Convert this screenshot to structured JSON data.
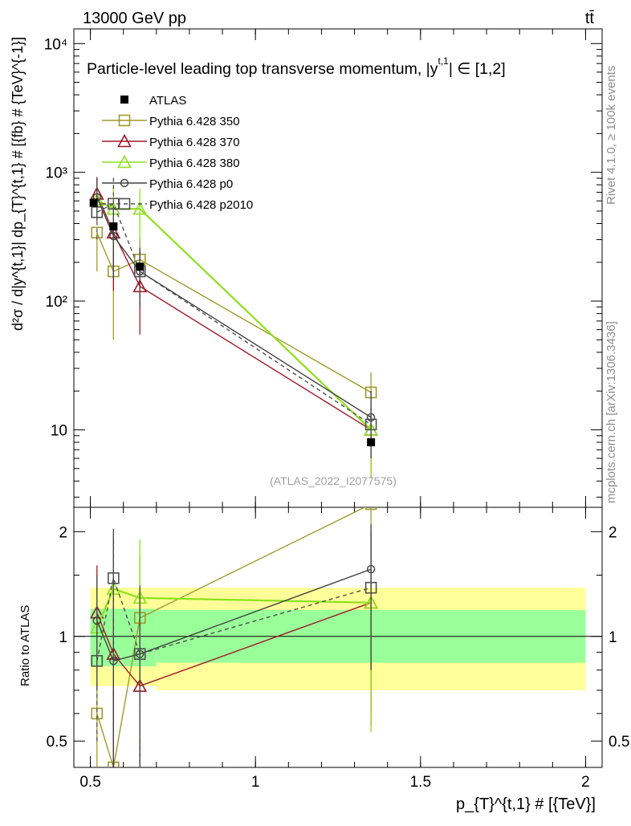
{
  "header": {
    "energy": "13000 GeV pp",
    "process": "tt̄"
  },
  "side_labels": {
    "rivet": "Rivet 4.1.0, ≥ 100k events",
    "source": "mcplots.cern.ch [arXiv:1306.3436]"
  },
  "chart_data": {
    "type": "scatter",
    "title": "Particle-level leading top transverse momentum, |y^{t,1}| ∈ [1,2]",
    "title_text": "Particle-level leading top transverse momentum, |y",
    "title_sup": "t,1",
    "title_tail": "| ∈ [1,2]",
    "analysis_id": "(ATLAS_2022_I2077575)",
    "xlabel": "p_{T}^{t,1} # [{TeV}]",
    "ylabel_main": "d²σ / d|y^{t,1}| dp_{T}^{t,1} # [{fb} # {TeV}^{-1}]",
    "ylabel_ratio": "Ratio to ATLAS",
    "xlim": [
      0.45,
      2.05
    ],
    "ylim_main": [
      2.5,
      13000
    ],
    "ylim_ratio": [
      0.42,
      2.35
    ],
    "x_ticks": [
      0.5,
      1,
      1.5,
      2
    ],
    "x_tick_labels": [
      "0.5",
      "1",
      "1.5",
      "2"
    ],
    "y_main_ticks": [
      10,
      100,
      1000,
      10000
    ],
    "y_main_tick_labels": [
      "10",
      "10²",
      "10³",
      "10⁴"
    ],
    "y_ratio_ticks": [
      0.5,
      1,
      2
    ],
    "y_ratio_tick_labels": [
      "0.5",
      "1",
      "2"
    ],
    "data": {
      "name": "ATLAS",
      "x": [
        0.51,
        0.57,
        0.65,
        1.35
      ],
      "xerr": [
        0.01,
        0.01,
        0.01,
        0.01
      ],
      "y": [
        580,
        380,
        185,
        8.0
      ]
    },
    "band_edges": [
      0.5,
      0.54,
      0.7,
      2.0
    ],
    "band_inner": [
      [
        0.82,
        1.2
      ],
      [
        0.82,
        1.2
      ],
      [
        0.84,
        1.19
      ]
    ],
    "band_outer": [
      [
        0.72,
        1.38
      ],
      [
        0.72,
        1.38
      ],
      [
        0.7,
        1.38
      ]
    ],
    "series": [
      {
        "name": "Pythia 6.428 350",
        "color": "#a09a2a",
        "marker": "square-open",
        "dash": "",
        "x": [
          0.52,
          0.57,
          0.65,
          1.35
        ],
        "y": [
          340,
          170,
          210,
          19.5
        ],
        "err": [
          [
            170,
            340
          ],
          [
            50,
            360
          ],
          [
            130,
            310
          ],
          [
            12,
            28
          ]
        ],
        "ratio": [
          0.6,
          0.42,
          1.13,
          2.4
        ],
        "ratio_err": [
          [
            0.4,
            0.8
          ],
          [
            0.3,
            1.9
          ],
          [
            0.35,
            1.7
          ],
          [
            0.6,
            3
          ]
        ]
      },
      {
        "name": "Pythia 6.428 370",
        "color": "#a01828",
        "marker": "triangle-open",
        "dash": "",
        "x": [
          0.52,
          0.57,
          0.65,
          1.35
        ],
        "y": [
          680,
          340,
          130,
          10.0
        ],
        "err": [
          [
            500,
            920
          ],
          [
            120,
            600
          ],
          [
            55,
            250
          ],
          [
            4.2,
            15
          ]
        ],
        "ratio": [
          1.17,
          0.89,
          0.72,
          1.25
        ],
        "ratio_err": [
          [
            0.8,
            1.6
          ],
          [
            0.35,
            1.6
          ],
          [
            0.3,
            1.4
          ],
          [
            0.55,
            2
          ]
        ]
      },
      {
        "name": "Pythia 6.428 380",
        "color": "#8ee01e",
        "marker": "triangle-open",
        "dash": "",
        "x": [
          0.52,
          0.57,
          0.65,
          1.35
        ],
        "y": [
          610,
          520,
          520,
          10.0
        ],
        "err": [
          [
            450,
            800
          ],
          [
            250,
            800
          ],
          [
            300,
            750
          ],
          [
            4.2,
            15
          ]
        ],
        "ratio": [
          1.06,
          1.37,
          1.29,
          1.25
        ],
        "ratio_err": [
          [
            0.7,
            1.5
          ],
          [
            0.7,
            2
          ],
          [
            0.5,
            1.9
          ],
          [
            0.53,
            2
          ]
        ]
      },
      {
        "name": "Pythia 6.428 p0",
        "color": "#404040",
        "marker": "circle-open",
        "dash": "",
        "x": [
          0.52,
          0.57,
          0.65,
          1.35
        ],
        "y": [
          640,
          320,
          170,
          12.5
        ],
        "err": [
          [
            420,
            900
          ],
          [
            150,
            550
          ],
          [
            90,
            260
          ],
          [
            6,
            20
          ]
        ],
        "ratio": [
          1.11,
          0.85,
          0.89,
          1.56
        ],
        "ratio_err": [
          [
            0.7,
            1.5
          ],
          [
            0.4,
            2
          ],
          [
            0.4,
            1.4
          ],
          [
            0.8,
            2.1
          ]
        ]
      },
      {
        "name": "Pythia 6.428 p2010",
        "color": "#505050",
        "marker": "square-open",
        "dash": "5,4",
        "x": [
          0.52,
          0.57,
          0.65,
          1.35
        ],
        "y": [
          490,
          570,
          170,
          11
        ],
        "err": [
          [
            300,
            800
          ],
          [
            300,
            950
          ],
          [
            100,
            260
          ],
          [
            6,
            18
          ]
        ],
        "ratio": [
          0.85,
          1.47,
          0.89,
          1.38
        ],
        "ratio_err": [
          [
            0.5,
            1.3
          ],
          [
            0.8,
            2.05
          ],
          [
            0.4,
            1.4
          ],
          [
            0.8,
            2
          ]
        ]
      }
    ]
  }
}
